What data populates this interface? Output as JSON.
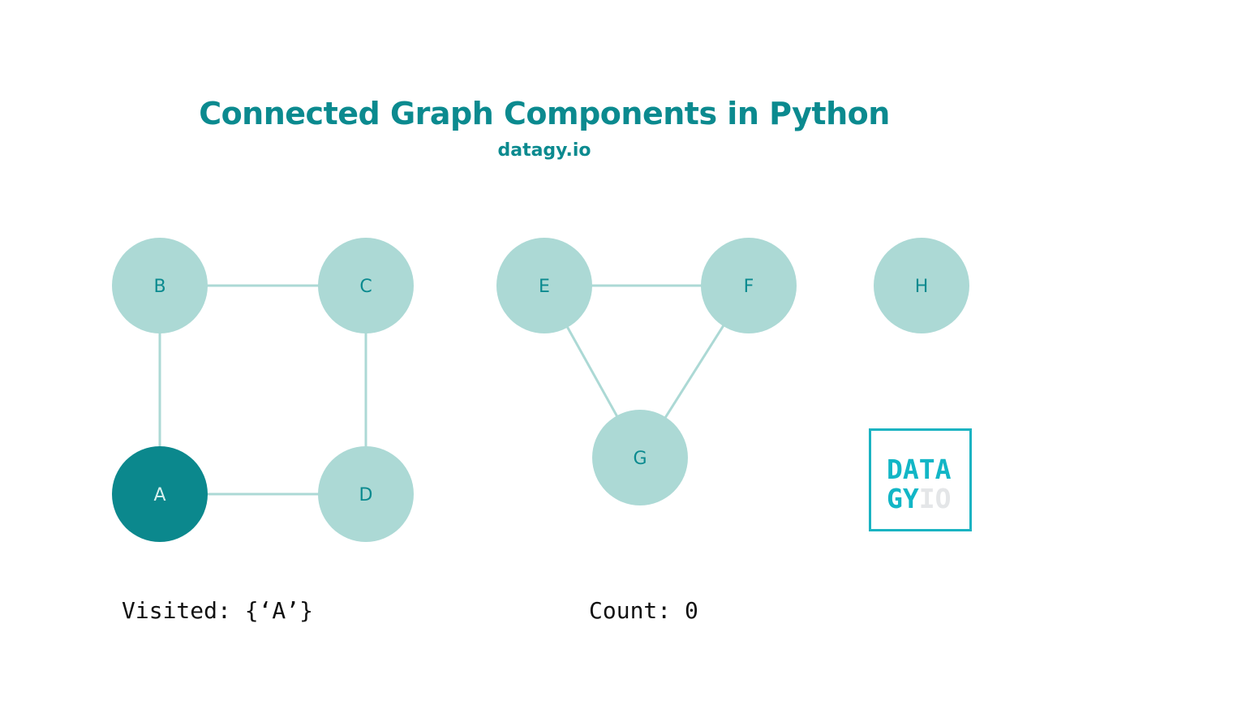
{
  "header": {
    "title": "Connected Graph Components in Python",
    "subtitle": "datagy.io"
  },
  "colors": {
    "accent": "#0b8a8f",
    "node_fill": "#acd9d5",
    "node_active_fill": "#0b888d",
    "edge": "#acd9d5",
    "logo_cyan": "#12b6c6",
    "logo_light": "#e4e6e8"
  },
  "graph": {
    "nodes": [
      {
        "id": "A",
        "label": "A",
        "visited": true
      },
      {
        "id": "B",
        "label": "B",
        "visited": false
      },
      {
        "id": "C",
        "label": "C",
        "visited": false
      },
      {
        "id": "D",
        "label": "D",
        "visited": false
      },
      {
        "id": "E",
        "label": "E",
        "visited": false
      },
      {
        "id": "F",
        "label": "F",
        "visited": false
      },
      {
        "id": "G",
        "label": "G",
        "visited": false
      },
      {
        "id": "H",
        "label": "H",
        "visited": false
      }
    ],
    "edges": [
      [
        "B",
        "C"
      ],
      [
        "B",
        "A"
      ],
      [
        "C",
        "D"
      ],
      [
        "A",
        "D"
      ],
      [
        "E",
        "F"
      ],
      [
        "E",
        "G"
      ],
      [
        "F",
        "G"
      ]
    ]
  },
  "logo": {
    "line1": "DATA",
    "line2a": "GY",
    "line2b": "IO"
  },
  "status": {
    "visited_text": "Visited: {‘A’}",
    "count_text": "Count: 0"
  }
}
